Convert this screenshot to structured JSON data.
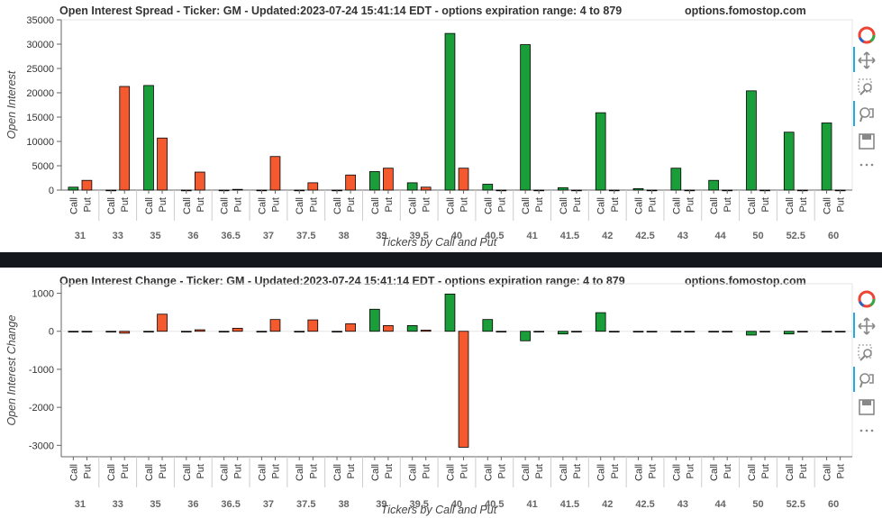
{
  "colors": {
    "call": "#1a9e3a",
    "put": "#f55a2f",
    "axis": "#666666",
    "bar_border": "#000000",
    "divider": "#14181c"
  },
  "x_labels": {
    "call": "Call",
    "put": "Put"
  },
  "chart_data": [
    {
      "type": "bar",
      "title": "Open Interest Spread - Ticker: GM - Updated:2023-07-24 15:41:14 EDT - options expiration range: 4 to 879",
      "watermark": "options.fomostop.com",
      "xlabel": "Tickers by Call and Put",
      "ylabel": "Open Interest",
      "ylim": [
        0,
        35000
      ],
      "yticks": [
        "0",
        "5000",
        "10000",
        "15000",
        "20000",
        "25000",
        "30000",
        "35000"
      ],
      "categories": [
        "31",
        "33",
        "35",
        "36",
        "36.5",
        "37",
        "37.5",
        "38",
        "39",
        "39.5",
        "40",
        "40.5",
        "41",
        "41.5",
        "42",
        "42.5",
        "43",
        "44",
        "50",
        "52.5",
        "60"
      ],
      "series": [
        {
          "name": "Call",
          "values": [
            600,
            0,
            21500,
            0,
            0,
            0,
            0,
            0,
            3800,
            1500,
            32200,
            1200,
            29900,
            500,
            15900,
            300,
            4500,
            2000,
            20400,
            11900,
            13800
          ]
        },
        {
          "name": "Put",
          "values": [
            2000,
            21300,
            10700,
            3700,
            150,
            6900,
            1500,
            3100,
            4500,
            600,
            4500,
            0,
            0,
            0,
            0,
            0,
            0,
            0,
            0,
            0,
            0
          ]
        }
      ]
    },
    {
      "type": "bar",
      "title": "Open Interest Change - Ticker: GM - Updated:2023-07-24 15:41:14 EDT - options expiration range: 4 to 879",
      "watermark": "options.fomostop.com",
      "xlabel": "Tickers by Call and Put",
      "ylabel": "Open Interest Change",
      "ylim": [
        -3300,
        1250
      ],
      "yticks": [
        "-3000",
        "-2000",
        "-1000",
        "0",
        "1000"
      ],
      "categories": [
        "31",
        "33",
        "35",
        "36",
        "36.5",
        "37",
        "37.5",
        "38",
        "39",
        "39.5",
        "40",
        "40.5",
        "41",
        "41.5",
        "42",
        "42.5",
        "43",
        "44",
        "50",
        "52.5",
        "60"
      ],
      "series": [
        {
          "name": "Call",
          "values": [
            0,
            0,
            0,
            0,
            0,
            0,
            0,
            0,
            580,
            150,
            980,
            310,
            -250,
            -70,
            490,
            0,
            0,
            0,
            -100,
            -70,
            0
          ]
        },
        {
          "name": "Put",
          "values": [
            0,
            -50,
            450,
            40,
            80,
            310,
            300,
            200,
            150,
            30,
            -3050,
            0,
            0,
            0,
            0,
            0,
            0,
            0,
            0,
            0,
            0
          ]
        }
      ]
    }
  ]
}
